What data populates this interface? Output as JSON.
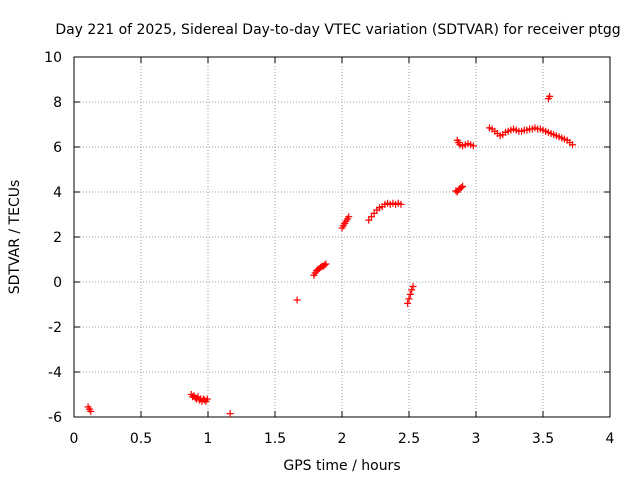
{
  "chart_data": {
    "type": "scatter",
    "title": "Day 221 of 2025, Sidereal Day-to-day VTEC variation (SDTVAR) for receiver ptgg",
    "xlabel": "GPS time / hours",
    "ylabel": "SDTVAR / TECUs",
    "xlim": [
      0,
      4
    ],
    "ylim": [
      -6,
      10
    ],
    "xticks": [
      0,
      0.5,
      1,
      1.5,
      2,
      2.5,
      3,
      3.5,
      4
    ],
    "yticks": [
      -6,
      -4,
      -2,
      0,
      2,
      4,
      6,
      8,
      10
    ],
    "xtick_labels": [
      "0",
      "0.5",
      "1",
      "1.5",
      "2",
      "2.5",
      "3",
      "3.5",
      "4"
    ],
    "ytick_labels": [
      "-6",
      "-4",
      "-2",
      "0",
      "2",
      "4",
      "6",
      "8",
      "10"
    ],
    "grid": true,
    "marker": "+",
    "color": "#ff0000",
    "series": [
      {
        "name": "SDTVAR",
        "points": [
          [
            0.105,
            -5.55
          ],
          [
            0.115,
            -5.65
          ],
          [
            0.125,
            -5.75
          ],
          [
            0.875,
            -5.0
          ],
          [
            0.885,
            -5.1
          ],
          [
            0.895,
            -5.05
          ],
          [
            0.905,
            -5.15
          ],
          [
            0.915,
            -5.2
          ],
          [
            0.925,
            -5.1
          ],
          [
            0.935,
            -5.25
          ],
          [
            0.945,
            -5.2
          ],
          [
            0.955,
            -5.3
          ],
          [
            0.965,
            -5.2
          ],
          [
            0.975,
            -5.25
          ],
          [
            0.985,
            -5.3
          ],
          [
            0.995,
            -5.2
          ],
          [
            1.165,
            -5.85
          ],
          [
            1.665,
            -0.8
          ],
          [
            1.79,
            0.3
          ],
          [
            1.8,
            0.4
          ],
          [
            1.81,
            0.5
          ],
          [
            1.82,
            0.55
          ],
          [
            1.83,
            0.6
          ],
          [
            1.84,
            0.65
          ],
          [
            1.85,
            0.7
          ],
          [
            1.86,
            0.7
          ],
          [
            1.87,
            0.75
          ],
          [
            1.88,
            0.8
          ],
          [
            2.0,
            2.4
          ],
          [
            2.01,
            2.5
          ],
          [
            2.02,
            2.6
          ],
          [
            2.03,
            2.7
          ],
          [
            2.04,
            2.8
          ],
          [
            2.05,
            2.9
          ],
          [
            2.2,
            2.75
          ],
          [
            2.22,
            2.9
          ],
          [
            2.24,
            3.05
          ],
          [
            2.26,
            3.2
          ],
          [
            2.28,
            3.3
          ],
          [
            2.3,
            3.35
          ],
          [
            2.32,
            3.45
          ],
          [
            2.34,
            3.5
          ],
          [
            2.36,
            3.45
          ],
          [
            2.38,
            3.5
          ],
          [
            2.4,
            3.45
          ],
          [
            2.42,
            3.5
          ],
          [
            2.44,
            3.45
          ],
          [
            2.49,
            -0.95
          ],
          [
            2.5,
            -0.75
          ],
          [
            2.51,
            -0.55
          ],
          [
            2.52,
            -0.35
          ],
          [
            2.53,
            -0.2
          ],
          [
            2.85,
            4.05
          ],
          [
            2.86,
            4.0
          ],
          [
            2.87,
            4.1
          ],
          [
            2.88,
            4.15
          ],
          [
            2.89,
            4.2
          ],
          [
            2.9,
            4.25
          ],
          [
            2.86,
            6.3
          ],
          [
            2.87,
            6.2
          ],
          [
            2.88,
            6.1
          ],
          [
            2.9,
            6.05
          ],
          [
            2.92,
            6.1
          ],
          [
            2.94,
            6.15
          ],
          [
            2.96,
            6.1
          ],
          [
            2.98,
            6.05
          ],
          [
            3.1,
            6.85
          ],
          [
            3.12,
            6.8
          ],
          [
            3.14,
            6.7
          ],
          [
            3.16,
            6.6
          ],
          [
            3.18,
            6.5
          ],
          [
            3.2,
            6.55
          ],
          [
            3.22,
            6.65
          ],
          [
            3.24,
            6.7
          ],
          [
            3.26,
            6.75
          ],
          [
            3.28,
            6.8
          ],
          [
            3.3,
            6.75
          ],
          [
            3.32,
            6.7
          ],
          [
            3.34,
            6.7
          ],
          [
            3.36,
            6.75
          ],
          [
            3.38,
            6.75
          ],
          [
            3.4,
            6.8
          ],
          [
            3.42,
            6.8
          ],
          [
            3.44,
            6.85
          ],
          [
            3.46,
            6.8
          ],
          [
            3.48,
            6.8
          ],
          [
            3.5,
            6.75
          ],
          [
            3.52,
            6.7
          ],
          [
            3.54,
            6.65
          ],
          [
            3.56,
            6.6
          ],
          [
            3.58,
            6.55
          ],
          [
            3.6,
            6.5
          ],
          [
            3.62,
            6.45
          ],
          [
            3.64,
            6.4
          ],
          [
            3.66,
            6.35
          ],
          [
            3.68,
            6.3
          ],
          [
            3.7,
            6.2
          ],
          [
            3.72,
            6.1
          ],
          [
            3.54,
            8.15
          ],
          [
            3.55,
            8.25
          ]
        ]
      }
    ]
  }
}
